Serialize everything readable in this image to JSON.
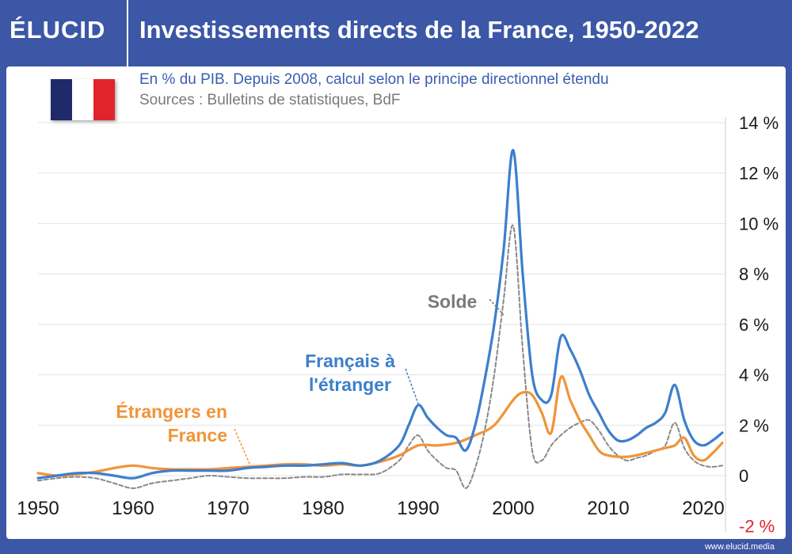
{
  "header": {
    "logo": "ÉLUCID",
    "title": "Investissements directs de la France, 1950-2022"
  },
  "subtitle": "En % du PIB. Depuis 2008, calcul selon le principe directionnel étendu",
  "source": "Sources : Bulletins de statistiques, BdF",
  "footer": "www.elucid.media",
  "flag": {
    "colors": [
      "#1f2a6b",
      "#ffffff",
      "#e1242c"
    ]
  },
  "colors": {
    "brand": "#3b57a6",
    "francais": "#3d7fcb",
    "etrangers": "#f0943a",
    "solde": "#888888",
    "negative_tick": "#e1242c"
  },
  "chart_data": {
    "type": "line",
    "xlim": [
      1950,
      2022
    ],
    "ylim": [
      -2,
      14
    ],
    "x_ticks": [
      1950,
      1960,
      1970,
      1980,
      1990,
      2000,
      2010,
      2020
    ],
    "x_tick_labels": [
      "1950",
      "1960",
      "1970",
      "1980",
      "1990",
      "2000",
      "2010",
      "2020"
    ],
    "y_ticks": [
      -2,
      0,
      2,
      4,
      6,
      8,
      10,
      12,
      14
    ],
    "y_tick_labels": [
      "-2 %",
      "0",
      "2 %",
      "4 %",
      "6 %",
      "8 %",
      "10 %",
      "12 %",
      "14 %"
    ],
    "grid": true,
    "series": [
      {
        "name": "Français à l'étranger",
        "label_lines": [
          "Français à",
          "l'étranger"
        ],
        "color": "#3d7fcb",
        "style": "solid",
        "x": [
          1950,
          1952,
          1954,
          1956,
          1958,
          1960,
          1962,
          1964,
          1966,
          1968,
          1970,
          1972,
          1974,
          1976,
          1978,
          1980,
          1982,
          1984,
          1986,
          1988,
          1989,
          1990,
          1991,
          1992,
          1993,
          1994,
          1995,
          1996,
          1997,
          1998,
          1999,
          2000,
          2001,
          2002,
          2003,
          2004,
          2005,
          2006,
          2007,
          2008,
          2009,
          2010,
          2011,
          2012,
          2013,
          2014,
          2015,
          2016,
          2017,
          2018,
          2019,
          2020,
          2021,
          2022
        ],
        "y": [
          -0.1,
          0.0,
          0.1,
          0.1,
          0.0,
          -0.1,
          0.1,
          0.2,
          0.2,
          0.2,
          0.2,
          0.3,
          0.35,
          0.4,
          0.4,
          0.45,
          0.5,
          0.4,
          0.6,
          1.2,
          2.0,
          2.8,
          2.3,
          1.9,
          1.6,
          1.5,
          1.0,
          2.0,
          3.8,
          6.0,
          9.0,
          12.9,
          8.0,
          4.0,
          3.0,
          3.2,
          5.5,
          5.0,
          4.2,
          3.2,
          2.5,
          1.8,
          1.4,
          1.4,
          1.6,
          1.9,
          2.1,
          2.5,
          3.6,
          2.2,
          1.4,
          1.2,
          1.4,
          1.7
        ]
      },
      {
        "name": "Étrangers en France",
        "label_lines": [
          "Étrangers en",
          "France"
        ],
        "color": "#f0943a",
        "style": "solid",
        "x": [
          1950,
          1952,
          1954,
          1956,
          1958,
          1960,
          1962,
          1964,
          1966,
          1968,
          1970,
          1972,
          1974,
          1976,
          1978,
          1980,
          1982,
          1984,
          1986,
          1988,
          1990,
          1992,
          1994,
          1996,
          1998,
          2000,
          2001,
          2002,
          2003,
          2004,
          2005,
          2006,
          2007,
          2008,
          2009,
          2010,
          2012,
          2014,
          2016,
          2017,
          2018,
          2019,
          2020,
          2021,
          2022
        ],
        "y": [
          0.1,
          0.0,
          0.05,
          0.15,
          0.3,
          0.4,
          0.3,
          0.25,
          0.25,
          0.25,
          0.3,
          0.35,
          0.4,
          0.45,
          0.45,
          0.4,
          0.45,
          0.4,
          0.55,
          0.8,
          1.2,
          1.2,
          1.3,
          1.6,
          2.0,
          3.0,
          3.3,
          3.2,
          2.5,
          1.7,
          3.9,
          3.0,
          2.2,
          1.6,
          1.0,
          0.8,
          0.75,
          0.9,
          1.1,
          1.2,
          1.5,
          0.8,
          0.6,
          0.9,
          1.3
        ]
      },
      {
        "name": "Solde",
        "label_lines": [
          "Solde"
        ],
        "color": "#888888",
        "style": "dashed",
        "x": [
          1950,
          1952,
          1954,
          1956,
          1958,
          1960,
          1962,
          1964,
          1966,
          1968,
          1970,
          1972,
          1974,
          1976,
          1978,
          1980,
          1982,
          1984,
          1986,
          1988,
          1989,
          1990,
          1991,
          1992,
          1993,
          1994,
          1995,
          1996,
          1997,
          1998,
          1999,
          2000,
          2001,
          2002,
          2003,
          2004,
          2005,
          2006,
          2007,
          2008,
          2009,
          2010,
          2011,
          2012,
          2013,
          2014,
          2015,
          2016,
          2017,
          2018,
          2019,
          2020,
          2021,
          2022
        ],
        "y": [
          -0.2,
          -0.1,
          -0.05,
          -0.1,
          -0.3,
          -0.5,
          -0.3,
          -0.2,
          -0.1,
          0.0,
          -0.05,
          -0.1,
          -0.1,
          -0.1,
          -0.05,
          -0.05,
          0.05,
          0.05,
          0.1,
          0.6,
          1.2,
          1.6,
          1.0,
          0.6,
          0.3,
          0.2,
          -0.5,
          0.3,
          1.8,
          4.0,
          7.0,
          9.9,
          5.0,
          1.0,
          0.6,
          1.2,
          1.6,
          1.9,
          2.1,
          2.2,
          1.8,
          1.2,
          0.8,
          0.6,
          0.7,
          0.8,
          1.0,
          1.2,
          2.1,
          1.1,
          0.6,
          0.4,
          0.35,
          0.4
        ]
      }
    ]
  }
}
